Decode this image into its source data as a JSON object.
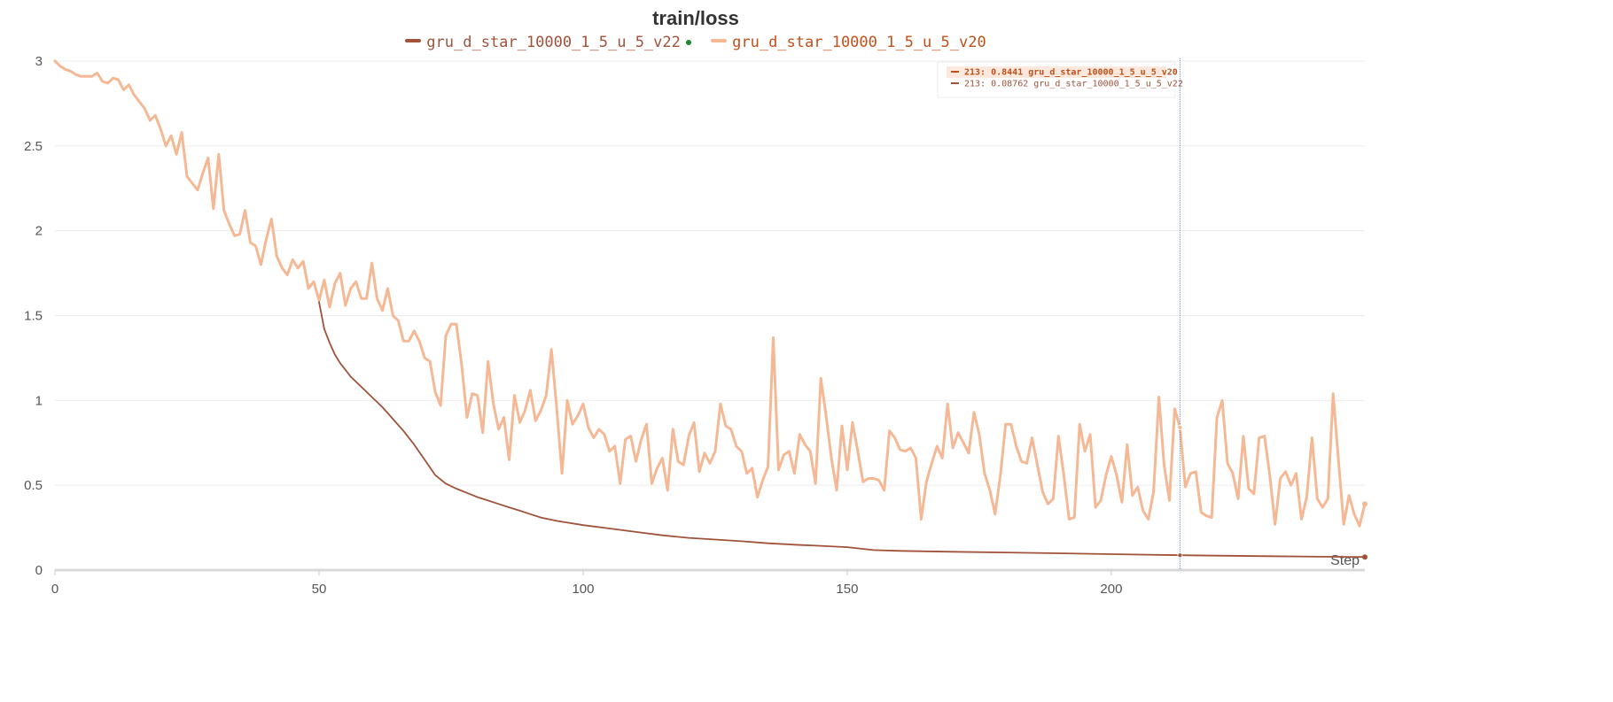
{
  "chart_data": {
    "type": "line",
    "title": "train/loss",
    "xlabel": "Step",
    "ylabel": "",
    "xlim": [
      0,
      248
    ],
    "ylim": [
      0,
      3.05
    ],
    "x_ticks": [
      0,
      50,
      100,
      150,
      200
    ],
    "y_ticks": [
      0,
      0.5,
      1,
      1.5,
      2,
      2.5,
      3
    ],
    "y_tick_labels": [
      "0",
      "0.5",
      "1",
      "1.5",
      "2",
      "2.5",
      "3"
    ],
    "grid": true,
    "legend_position": "top",
    "series": [
      {
        "name": "gru_d_star_10000_1_5_u_5_v22",
        "color": "#A0523A",
        "points": [
          [
            50,
            1.58
          ],
          [
            51,
            1.42
          ],
          [
            52,
            1.34
          ],
          [
            53,
            1.27
          ],
          [
            54,
            1.22
          ],
          [
            55,
            1.18
          ],
          [
            56,
            1.14
          ],
          [
            58,
            1.08
          ],
          [
            60,
            1.02
          ],
          [
            62,
            0.96
          ],
          [
            64,
            0.89
          ],
          [
            66,
            0.82
          ],
          [
            68,
            0.74
          ],
          [
            70,
            0.65
          ],
          [
            72,
            0.56
          ],
          [
            74,
            0.51
          ],
          [
            76,
            0.48
          ],
          [
            78,
            0.455
          ],
          [
            80,
            0.43
          ],
          [
            82,
            0.41
          ],
          [
            84,
            0.39
          ],
          [
            86,
            0.37
          ],
          [
            88,
            0.35
          ],
          [
            90,
            0.33
          ],
          [
            92,
            0.31
          ],
          [
            95,
            0.29
          ],
          [
            100,
            0.265
          ],
          [
            105,
            0.245
          ],
          [
            110,
            0.225
          ],
          [
            115,
            0.205
          ],
          [
            120,
            0.19
          ],
          [
            125,
            0.18
          ],
          [
            130,
            0.17
          ],
          [
            135,
            0.158
          ],
          [
            140,
            0.15
          ],
          [
            145,
            0.143
          ],
          [
            150,
            0.135
          ],
          [
            155,
            0.118
          ],
          [
            160,
            0.113
          ],
          [
            170,
            0.108
          ],
          [
            180,
            0.104
          ],
          [
            190,
            0.099
          ],
          [
            200,
            0.094
          ],
          [
            213,
            0.0876
          ],
          [
            220,
            0.085
          ],
          [
            230,
            0.082
          ],
          [
            240,
            0.079
          ],
          [
            248,
            0.077
          ]
        ]
      },
      {
        "name": "gru_d_star_10000_1_5_u_5_v20",
        "color": "#F5B895",
        "points": [
          [
            0,
            3.0
          ],
          [
            1,
            2.97
          ],
          [
            2,
            2.95
          ],
          [
            3,
            2.94
          ],
          [
            4,
            2.92
          ],
          [
            5,
            2.91
          ],
          [
            6,
            2.91
          ],
          [
            7,
            2.91
          ],
          [
            8,
            2.93
          ],
          [
            9,
            2.88
          ],
          [
            10,
            2.87
          ],
          [
            11,
            2.9
          ],
          [
            12,
            2.89
          ],
          [
            13,
            2.83
          ],
          [
            14,
            2.86
          ],
          [
            15,
            2.8
          ],
          [
            16,
            2.76
          ],
          [
            17,
            2.72
          ],
          [
            18,
            2.65
          ],
          [
            19,
            2.68
          ],
          [
            20,
            2.6
          ],
          [
            21,
            2.5
          ],
          [
            22,
            2.56
          ],
          [
            23,
            2.45
          ],
          [
            24,
            2.58
          ],
          [
            25,
            2.32
          ],
          [
            26,
            2.28
          ],
          [
            27,
            2.24
          ],
          [
            28,
            2.34
          ],
          [
            29,
            2.43
          ],
          [
            30,
            2.13
          ],
          [
            31,
            2.45
          ],
          [
            32,
            2.12
          ],
          [
            33,
            2.04
          ],
          [
            34,
            1.97
          ],
          [
            35,
            1.98
          ],
          [
            36,
            2.12
          ],
          [
            37,
            1.93
          ],
          [
            38,
            1.91
          ],
          [
            39,
            1.8
          ],
          [
            40,
            1.95
          ],
          [
            41,
            2.07
          ],
          [
            42,
            1.85
          ],
          [
            43,
            1.78
          ],
          [
            44,
            1.74
          ],
          [
            45,
            1.83
          ],
          [
            46,
            1.78
          ],
          [
            47,
            1.82
          ],
          [
            48,
            1.66
          ],
          [
            49,
            1.7
          ],
          [
            50,
            1.59
          ],
          [
            51,
            1.71
          ],
          [
            52,
            1.55
          ],
          [
            53,
            1.69
          ],
          [
            54,
            1.75
          ],
          [
            55,
            1.56
          ],
          [
            56,
            1.66
          ],
          [
            57,
            1.7
          ],
          [
            58,
            1.6
          ],
          [
            59,
            1.6
          ],
          [
            60,
            1.81
          ],
          [
            61,
            1.6
          ],
          [
            62,
            1.53
          ],
          [
            63,
            1.66
          ],
          [
            64,
            1.5
          ],
          [
            65,
            1.47
          ],
          [
            66,
            1.35
          ],
          [
            67,
            1.35
          ],
          [
            68,
            1.41
          ],
          [
            69,
            1.35
          ],
          [
            70,
            1.25
          ],
          [
            71,
            1.23
          ],
          [
            72,
            1.05
          ],
          [
            73,
            0.97
          ],
          [
            74,
            1.38
          ],
          [
            75,
            1.45
          ],
          [
            76,
            1.45
          ],
          [
            77,
            1.21
          ],
          [
            78,
            0.9
          ],
          [
            79,
            1.04
          ],
          [
            80,
            1.03
          ],
          [
            81,
            0.81
          ],
          [
            82,
            1.23
          ],
          [
            83,
            0.98
          ],
          [
            84,
            0.83
          ],
          [
            85,
            0.9
          ],
          [
            86,
            0.65
          ],
          [
            87,
            1.03
          ],
          [
            88,
            0.87
          ],
          [
            89,
            0.94
          ],
          [
            90,
            1.06
          ],
          [
            91,
            0.88
          ],
          [
            92,
            0.94
          ],
          [
            93,
            1.03
          ],
          [
            94,
            1.3
          ],
          [
            95,
            0.95
          ],
          [
            96,
            0.57
          ],
          [
            97,
            1.0
          ],
          [
            98,
            0.86
          ],
          [
            99,
            0.91
          ],
          [
            100,
            0.98
          ],
          [
            101,
            0.84
          ],
          [
            102,
            0.78
          ],
          [
            103,
            0.83
          ],
          [
            104,
            0.8
          ],
          [
            105,
            0.7
          ],
          [
            106,
            0.73
          ],
          [
            107,
            0.51
          ],
          [
            108,
            0.77
          ],
          [
            109,
            0.79
          ],
          [
            110,
            0.64
          ],
          [
            111,
            0.77
          ],
          [
            112,
            0.86
          ],
          [
            113,
            0.51
          ],
          [
            114,
            0.6
          ],
          [
            115,
            0.66
          ],
          [
            116,
            0.47
          ],
          [
            117,
            0.83
          ],
          [
            118,
            0.64
          ],
          [
            119,
            0.62
          ],
          [
            120,
            0.79
          ],
          [
            121,
            0.87
          ],
          [
            122,
            0.58
          ],
          [
            123,
            0.69
          ],
          [
            124,
            0.63
          ],
          [
            125,
            0.7
          ],
          [
            126,
            0.98
          ],
          [
            127,
            0.85
          ],
          [
            128,
            0.83
          ],
          [
            129,
            0.73
          ],
          [
            130,
            0.7
          ],
          [
            131,
            0.57
          ],
          [
            132,
            0.6
          ],
          [
            133,
            0.43
          ],
          [
            134,
            0.53
          ],
          [
            135,
            0.61
          ],
          [
            136,
            1.37
          ],
          [
            137,
            0.59
          ],
          [
            138,
            0.68
          ],
          [
            139,
            0.7
          ],
          [
            140,
            0.57
          ],
          [
            141,
            0.8
          ],
          [
            142,
            0.74
          ],
          [
            143,
            0.7
          ],
          [
            144,
            0.51
          ],
          [
            145,
            1.13
          ],
          [
            146,
            0.91
          ],
          [
            147,
            0.66
          ],
          [
            148,
            0.47
          ],
          [
            149,
            0.85
          ],
          [
            150,
            0.59
          ],
          [
            151,
            0.87
          ],
          [
            152,
            0.7
          ],
          [
            153,
            0.52
          ],
          [
            154,
            0.54
          ],
          [
            155,
            0.54
          ],
          [
            156,
            0.53
          ],
          [
            157,
            0.47
          ],
          [
            158,
            0.82
          ],
          [
            159,
            0.78
          ],
          [
            160,
            0.71
          ],
          [
            161,
            0.7
          ],
          [
            162,
            0.72
          ],
          [
            163,
            0.66
          ],
          [
            164,
            0.3
          ],
          [
            165,
            0.52
          ],
          [
            166,
            0.63
          ],
          [
            167,
            0.73
          ],
          [
            168,
            0.66
          ],
          [
            169,
            0.98
          ],
          [
            170,
            0.72
          ],
          [
            171,
            0.81
          ],
          [
            172,
            0.75
          ],
          [
            173,
            0.69
          ],
          [
            174,
            0.93
          ],
          [
            175,
            0.8
          ],
          [
            176,
            0.57
          ],
          [
            177,
            0.47
          ],
          [
            178,
            0.33
          ],
          [
            179,
            0.56
          ],
          [
            180,
            0.86
          ],
          [
            181,
            0.86
          ],
          [
            182,
            0.73
          ],
          [
            183,
            0.64
          ],
          [
            184,
            0.63
          ],
          [
            185,
            0.78
          ],
          [
            186,
            0.62
          ],
          [
            187,
            0.46
          ],
          [
            188,
            0.39
          ],
          [
            189,
            0.42
          ],
          [
            190,
            0.79
          ],
          [
            191,
            0.56
          ],
          [
            192,
            0.3
          ],
          [
            193,
            0.31
          ],
          [
            194,
            0.86
          ],
          [
            195,
            0.7
          ],
          [
            196,
            0.8
          ],
          [
            197,
            0.37
          ],
          [
            198,
            0.41
          ],
          [
            199,
            0.56
          ],
          [
            200,
            0.67
          ],
          [
            201,
            0.56
          ],
          [
            202,
            0.4
          ],
          [
            203,
            0.74
          ],
          [
            204,
            0.44
          ],
          [
            205,
            0.49
          ],
          [
            206,
            0.35
          ],
          [
            207,
            0.3
          ],
          [
            208,
            0.46
          ],
          [
            209,
            1.02
          ],
          [
            210,
            0.62
          ],
          [
            211,
            0.41
          ],
          [
            212,
            0.95
          ],
          [
            213,
            0.84
          ],
          [
            214,
            0.49
          ],
          [
            215,
            0.57
          ],
          [
            216,
            0.58
          ],
          [
            217,
            0.34
          ],
          [
            218,
            0.32
          ],
          [
            219,
            0.31
          ],
          [
            220,
            0.9
          ],
          [
            221,
            1.0
          ],
          [
            222,
            0.63
          ],
          [
            223,
            0.57
          ],
          [
            224,
            0.42
          ],
          [
            225,
            0.79
          ],
          [
            226,
            0.48
          ],
          [
            227,
            0.45
          ],
          [
            228,
            0.78
          ],
          [
            229,
            0.79
          ],
          [
            230,
            0.56
          ],
          [
            231,
            0.27
          ],
          [
            232,
            0.54
          ],
          [
            233,
            0.58
          ],
          [
            234,
            0.5
          ],
          [
            235,
            0.57
          ],
          [
            236,
            0.3
          ],
          [
            237,
            0.43
          ],
          [
            238,
            0.78
          ],
          [
            239,
            0.42
          ],
          [
            240,
            0.37
          ],
          [
            241,
            0.42
          ],
          [
            242,
            1.04
          ],
          [
            243,
            0.65
          ],
          [
            244,
            0.27
          ],
          [
            245,
            0.44
          ],
          [
            246,
            0.33
          ],
          [
            247,
            0.26
          ],
          [
            248,
            0.39
          ]
        ]
      }
    ],
    "hover": {
      "step": 213,
      "rows": [
        {
          "text": "213: 0.8441 gru_d_star_10000_1_5_u_5_v20",
          "color": "#C0501A",
          "bold": true
        },
        {
          "text": "213: 0.08762 gru_d_star_10000_1_5_u_5_v22",
          "color": "#A0523A",
          "bold": false
        }
      ]
    }
  }
}
